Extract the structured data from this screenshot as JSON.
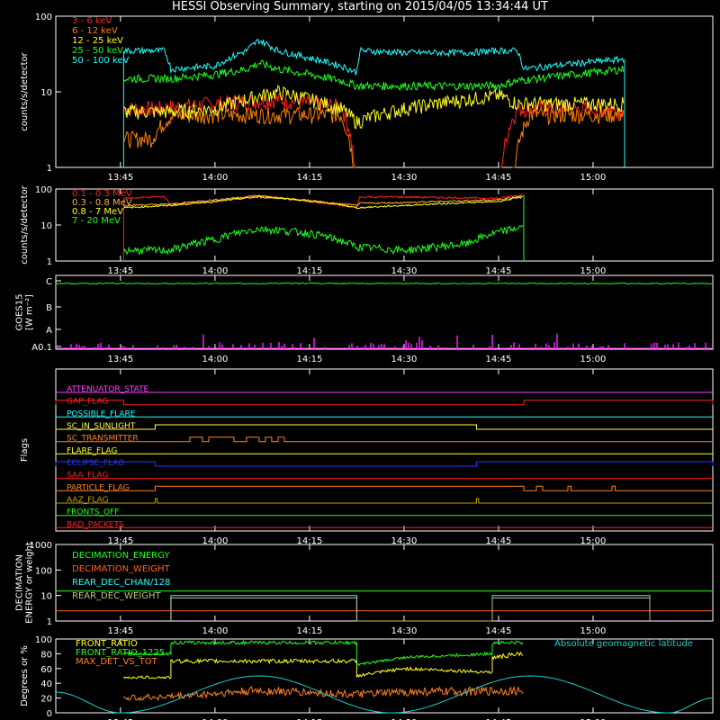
{
  "title": "HESSI Observing Summary, starting on 2015/04/05 13:34:44 UT",
  "time_axis": {
    "start": "13:34:44",
    "end": "15:19:00",
    "ticks": [
      "13:45",
      "14:00",
      "14:15",
      "14:30",
      "14:45",
      "15:00"
    ]
  },
  "colors": {
    "bg": "#000000",
    "axes": "#ffffff"
  },
  "chart_data": [
    {
      "id": "panel-lowE",
      "type": "line",
      "ylabel": "counts/s/detector",
      "ylog": true,
      "ylim": [
        1,
        100
      ],
      "yticks": [
        "1",
        "10",
        "100"
      ],
      "legend_placement": "top-left",
      "series": [
        {
          "name": "3 - 6 keV",
          "color": "#ff2020",
          "x": [
            "13:45:30",
            "13:50",
            "13:55",
            "14:00",
            "14:05",
            "14:10",
            "14:15",
            "14:20",
            "14:22:30",
            "14:30",
            "14:45",
            "14:48",
            "15:00",
            "15:05"
          ],
          "y": [
            6,
            6,
            6.5,
            7,
            7.5,
            8,
            7,
            6.5,
            0,
            0,
            0,
            6,
            6,
            6
          ]
        },
        {
          "name": "6 - 12 keV",
          "color": "#ff8000",
          "x": [
            "13:45:30",
            "13:50",
            "13:53",
            "14:00",
            "14:05",
            "14:10",
            "14:15",
            "14:20",
            "14:22:30",
            "14:47",
            "14:50",
            "15:00",
            "15:05"
          ],
          "y": [
            2.4,
            2.4,
            4.8,
            5,
            5,
            5,
            5,
            5,
            0,
            0,
            5,
            5,
            5
          ]
        },
        {
          "name": "12 - 25 keV",
          "color": "#ffff20",
          "x": [
            "13:45:30",
            "13:50",
            "13:53",
            "14:00",
            "14:05",
            "14:10",
            "14:15",
            "14:20",
            "14:22:30",
            "14:26",
            "14:30",
            "14:35",
            "14:40",
            "14:45",
            "14:48",
            "15:00",
            "15:05"
          ],
          "y": [
            5.5,
            5.5,
            5.5,
            6,
            8,
            10,
            8,
            6,
            4,
            5,
            6,
            7,
            8,
            9,
            7,
            7,
            7
          ]
        },
        {
          "name": "25 - 50 keV",
          "color": "#20ff20",
          "x": [
            "13:45:30",
            "13:53",
            "14:00",
            "14:05",
            "14:07",
            "14:10",
            "14:15",
            "14:20",
            "14:22:30",
            "14:30",
            "14:40",
            "14:45",
            "14:48",
            "15:00",
            "15:05"
          ],
          "y": [
            15,
            15,
            17,
            20,
            24,
            20,
            17,
            14,
            12,
            12,
            12,
            12,
            14,
            18,
            20
          ]
        },
        {
          "name": "50 - 100 keV",
          "color": "#20ffff",
          "x": [
            "13:45:30",
            "13:50",
            "13:52",
            "13:53",
            "14:00",
            "14:05",
            "14:07",
            "14:10",
            "14:15",
            "14:20",
            "14:22:30",
            "14:23",
            "14:30",
            "14:40",
            "14:45",
            "14:48",
            "14:49",
            "15:00",
            "15:05"
          ],
          "y": [
            35,
            35,
            35,
            20,
            22,
            35,
            48,
            35,
            28,
            22,
            18,
            35,
            33,
            33,
            35,
            35,
            20,
            25,
            27
          ]
        }
      ]
    },
    {
      "id": "panel-highE",
      "type": "line",
      "ylabel": "counts/s/detector",
      "ylog": true,
      "ylim": [
        1,
        100
      ],
      "yticks": [
        "1",
        "10",
        "100"
      ],
      "legend_placement": "top-left",
      "series": [
        {
          "name": "0.1 - 0.3 MeV",
          "color": "#ff2020",
          "x": [
            "13:45:30",
            "13:50",
            "13:52",
            "13:53",
            "14:00",
            "14:07",
            "14:15",
            "14:22:30",
            "14:23",
            "14:30",
            "14:45",
            "14:49"
          ],
          "y": [
            55,
            60,
            60,
            35,
            45,
            65,
            45,
            30,
            60,
            60,
            55,
            70
          ]
        },
        {
          "name": "0.3 - 0.8 MeV",
          "color": "#ffb040",
          "x": [
            "13:45:30",
            "13:53",
            "14:00",
            "14:07",
            "14:15",
            "14:22:30",
            "14:23",
            "14:30",
            "14:45",
            "14:49"
          ],
          "y": [
            35,
            38,
            50,
            65,
            45,
            35,
            40,
            42,
            50,
            65
          ]
        },
        {
          "name": "0.8 - 7 MeV",
          "color": "#ffff20",
          "x": [
            "13:45:30",
            "13:53",
            "14:00",
            "14:07",
            "14:15",
            "14:22:30",
            "14:30",
            "14:45",
            "14:49"
          ],
          "y": [
            30,
            35,
            45,
            60,
            48,
            30,
            35,
            45,
            60
          ]
        },
        {
          "name": "7 - 20 MeV",
          "color": "#20ff20",
          "x": [
            "13:45:30",
            "13:53",
            "14:00",
            "14:07",
            "14:15",
            "14:22:30",
            "14:30",
            "14:40",
            "14:49"
          ],
          "y": [
            2,
            2,
            4,
            8,
            6,
            2.5,
            2,
            3,
            9
          ]
        }
      ]
    },
    {
      "id": "panel-goes",
      "type": "line",
      "ylabel": "GOES15 [W m^-2]",
      "ylabel_lines": [
        "GOES15",
        "[W m⁻²]"
      ],
      "yticks": [
        "A0.1",
        "A",
        "B",
        "C"
      ],
      "series": [
        {
          "name": "",
          "color": "#20ff20",
          "x": [
            "13:34:44",
            "14:00",
            "14:15",
            "14:30",
            "14:45",
            "15:00",
            "15:19"
          ],
          "y": [
            1.5e-06,
            1.45e-06,
            1.4e-06,
            1.45e-06,
            1.5e-06,
            1.45e-06,
            1.4e-06
          ]
        },
        {
          "name": "",
          "color": "#ff20ff",
          "style": "spikes"
        }
      ]
    },
    {
      "id": "panel-flags",
      "type": "line",
      "ylabel": "Flags",
      "flags": [
        {
          "name": "ATTENUATOR_STATE",
          "color": "#ff40ff",
          "on": []
        },
        {
          "name": "GAP_FLAG",
          "color": "#ff2020",
          "on": [
            [
              "13:34:44",
              "13:45:30"
            ],
            [
              "14:49",
              "15:19"
            ]
          ]
        },
        {
          "name": "POSSIBLE_FLARE",
          "color": "#20ffff",
          "on": []
        },
        {
          "name": "SC_IN_SUNLIGHT",
          "color": "#ffff40",
          "on": [
            [
              "13:50:30",
              "14:41:30"
            ]
          ]
        },
        {
          "name": "SC_TRANSMITTER",
          "color": "#ff8020",
          "on": [
            [
              "13:56",
              "13:58"
            ],
            [
              "13:59",
              "14:03"
            ],
            [
              "14:05",
              "14:07"
            ],
            [
              "14:08",
              "14:09"
            ],
            [
              "14:10",
              "14:11"
            ]
          ]
        },
        {
          "name": "FLARE_FLAG",
          "color": "#ffff20",
          "on": []
        },
        {
          "name": "ECLIPSE_FLAG",
          "color": "#3030ff",
          "on": [
            [
              "13:34:44",
              "13:50:30"
            ],
            [
              "14:41:30",
              "15:19"
            ]
          ]
        },
        {
          "name": "SAA_FLAG",
          "color": "#ff2020",
          "on": []
        },
        {
          "name": "PARTICLE_FLAG",
          "color": "#ff8020",
          "on": [
            [
              "13:50:30",
              "14:49"
            ],
            [
              "14:51",
              "14:52"
            ],
            [
              "14:56",
              "14:56:30"
            ],
            [
              "15:03",
              "15:03:30"
            ]
          ]
        },
        {
          "name": "AAZ_FLAG",
          "color": "#c0a000",
          "on": [
            [
              "13:50:30",
              "13:50:50"
            ],
            [
              "14:41:30",
              "14:41:50"
            ]
          ]
        },
        {
          "name": "FRONTS_OFF",
          "color": "#20ff20",
          "on": []
        },
        {
          "name": "BAD_PACKETS",
          "color": "#ff2020",
          "on": []
        }
      ]
    },
    {
      "id": "panel-decimation",
      "type": "line",
      "ylabel_lines": [
        "DECIMATION",
        "ENERGY or weight"
      ],
      "ylog": true,
      "ylim": [
        1,
        1000
      ],
      "yticks": [
        "1",
        "10",
        "100",
        "1000"
      ],
      "series": [
        {
          "name": "DECIMATION_ENERGY",
          "color": "#20ff20",
          "x": [
            "13:34:44",
            "15:19"
          ],
          "y": [
            15,
            15
          ]
        },
        {
          "name": "DECIMATION_WEIGHT",
          "color": "#ff6020",
          "x": [
            "13:34:44",
            "15:19"
          ],
          "y": [
            2.5,
            2.5
          ]
        },
        {
          "name": "REAR_DEC_CHAN/128",
          "color": "#20ffff",
          "x": [
            "13:53",
            "13:53",
            "14:22:30",
            "14:22:30",
            "14:44",
            "14:44",
            "15:09",
            "15:09"
          ],
          "y": [
            1,
            10,
            10,
            1,
            1,
            10,
            10,
            1
          ]
        },
        {
          "name": "REAR_DEC_WEIGHT",
          "color": "#c0c080",
          "x": [
            "13:53",
            "13:53",
            "14:22:30",
            "14:22:30",
            "14:44",
            "14:44",
            "15:09",
            "15:09"
          ],
          "y": [
            1,
            8,
            8,
            1,
            1,
            8,
            8,
            1
          ]
        }
      ]
    },
    {
      "id": "panel-ratio",
      "type": "line",
      "ylabel": "Degrees or %",
      "ylim": [
        0,
        100
      ],
      "yticks": [
        "0",
        "20",
        "40",
        "60",
        "80",
        "100"
      ],
      "series": [
        {
          "name": "FRONT_RATIO",
          "color": "#ffff20",
          "x": [
            "13:45:30",
            "13:53",
            "13:53",
            "14:22:30",
            "14:22:30",
            "14:30",
            "14:44",
            "14:44",
            "14:49"
          ],
          "y": [
            48,
            48,
            70,
            70,
            50,
            60,
            55,
            75,
            80
          ]
        },
        {
          "name": "FRONT_RATIO_1225",
          "color": "#20ff20",
          "x": [
            "13:45:30",
            "13:53",
            "13:53",
            "14:22:30",
            "14:22:30",
            "14:30",
            "14:44",
            "14:44",
            "14:49"
          ],
          "y": [
            80,
            80,
            95,
            95,
            65,
            75,
            80,
            95,
            95
          ]
        },
        {
          "name": "MAX_DET_VS_TOT",
          "color": "#ff8020",
          "x": [
            "13:45:30",
            "13:53",
            "14:07",
            "14:22:30",
            "14:30",
            "14:49"
          ],
          "y": [
            20,
            22,
            30,
            25,
            28,
            30
          ]
        },
        {
          "name": "Absolute geomagnetic latitude",
          "color": "#20d0d0",
          "x": [
            "13:34:44",
            "13:45",
            "14:07",
            "14:28",
            "14:50",
            "15:12",
            "15:19"
          ],
          "y": [
            28,
            0,
            50,
            0,
            50,
            0,
            20
          ]
        }
      ]
    }
  ]
}
